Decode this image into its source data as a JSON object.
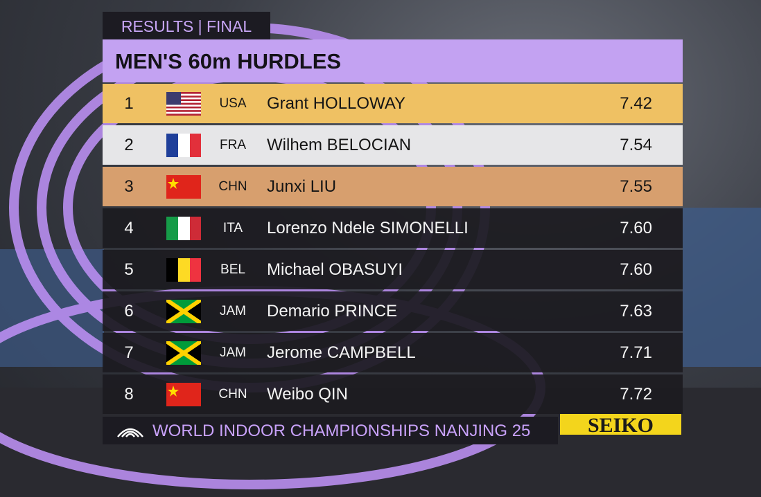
{
  "header": {
    "tag": "RESULTS | FINAL",
    "title": "MEN'S 60m HURDLES"
  },
  "results": [
    {
      "rank": 1,
      "country": "USA",
      "athlete": "Grant HOLLOWAY",
      "time": "7.42"
    },
    {
      "rank": 2,
      "country": "FRA",
      "athlete": "Wilhem BELOCIAN",
      "time": "7.54"
    },
    {
      "rank": 3,
      "country": "CHN",
      "athlete": "Junxi LIU",
      "time": "7.55"
    },
    {
      "rank": 4,
      "country": "ITA",
      "athlete": "Lorenzo Ndele SIMONELLI",
      "time": "7.60"
    },
    {
      "rank": 5,
      "country": "BEL",
      "athlete": "Michael OBASUYI",
      "time": "7.60"
    },
    {
      "rank": 6,
      "country": "JAM",
      "athlete": "Demario PRINCE",
      "time": "7.63"
    },
    {
      "rank": 7,
      "country": "JAM",
      "athlete": "Jerome CAMPBELL",
      "time": "7.71"
    },
    {
      "rank": 8,
      "country": "CHN",
      "athlete": "Weibo QIN",
      "time": "7.72"
    }
  ],
  "footer": {
    "event": "WORLD INDOOR CHAMPIONSHIPS NANJING 25",
    "sponsor": "SEIKO"
  }
}
